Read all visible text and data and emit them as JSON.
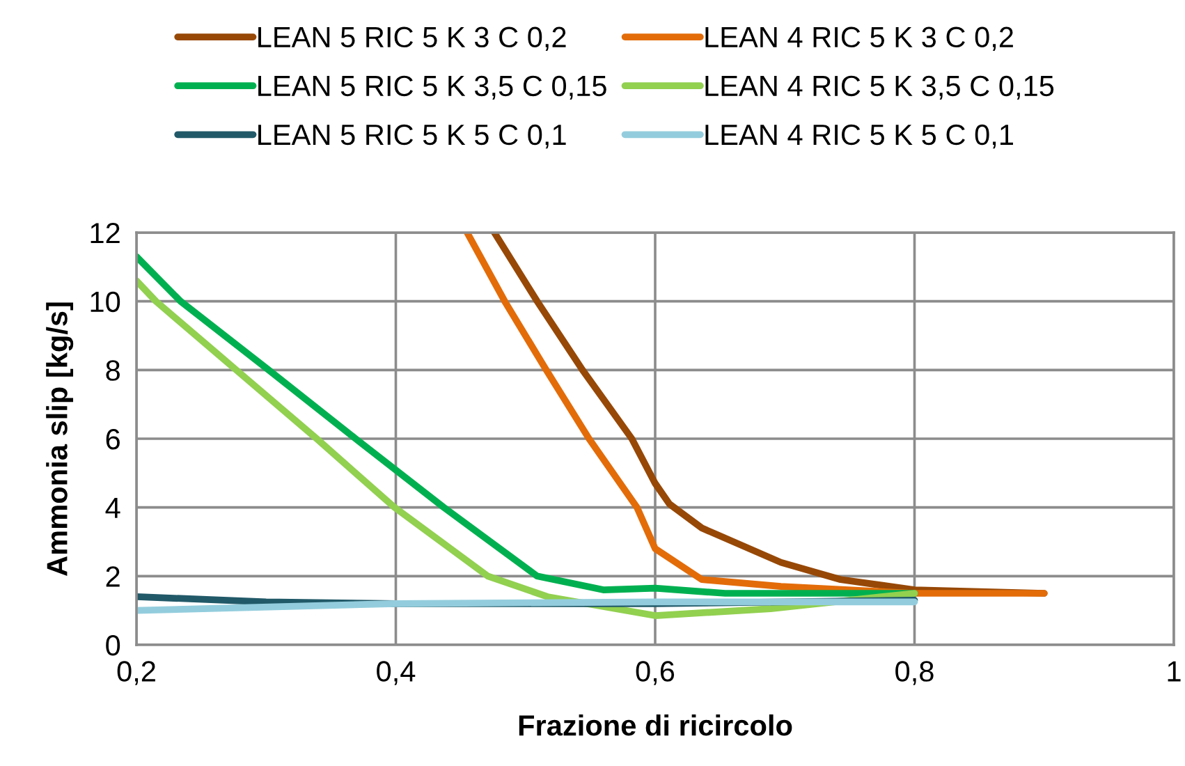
{
  "chart_data": {
    "type": "line",
    "xlabel": "Frazione di ricircolo",
    "ylabel": "Ammonia slip [kg/s]",
    "xlim": [
      0.2,
      1
    ],
    "ylim": [
      0,
      12
    ],
    "xticks": [
      {
        "value": 0.2,
        "label": "0,2"
      },
      {
        "value": 0.4,
        "label": "0,4"
      },
      {
        "value": 0.6,
        "label": "0,6"
      },
      {
        "value": 0.8,
        "label": "0,8"
      },
      {
        "value": 1,
        "label": "1"
      }
    ],
    "yticks": [
      0,
      2,
      4,
      6,
      8,
      10,
      12
    ],
    "grid": true,
    "legend": "top",
    "marker": "none",
    "line_style": "solid",
    "series": [
      {
        "name": "LEAN 5 RIC 5 K 3 C 0,2",
        "color": "#974806",
        "x": [
          0.476,
          0.509,
          0.544,
          0.582,
          0.6,
          0.611,
          0.636,
          0.697,
          0.743,
          0.8,
          0.9
        ],
        "values": [
          12,
          10,
          8,
          6,
          4.7,
          4.1,
          3.4,
          2.4,
          1.9,
          1.6,
          1.5
        ]
      },
      {
        "name": "LEAN 4 RIC 5 K 3 C 0,2",
        "color": "#e36c09",
        "x": [
          0.455,
          0.484,
          0.516,
          0.549,
          0.586,
          0.6,
          0.636,
          0.697,
          0.8,
          0.9
        ],
        "values": [
          12,
          10,
          8,
          6,
          4,
          2.8,
          1.9,
          1.7,
          1.5,
          1.5
        ]
      },
      {
        "name": "LEAN 5 RIC 5 K 3,5 C 0,15",
        "color": "#00b050",
        "x": [
          0.2,
          0.234,
          0.302,
          0.369,
          0.437,
          0.509,
          0.56,
          0.6,
          0.654,
          0.8
        ],
        "values": [
          11.3,
          10,
          8,
          6,
          4,
          2,
          1.6,
          1.65,
          1.5,
          1.5
        ]
      },
      {
        "name": "LEAN 4 RIC 5 K 3,5 C 0,15",
        "color": "#92d050",
        "x": [
          0.2,
          0.215,
          0.277,
          0.339,
          0.399,
          0.471,
          0.517,
          0.6,
          0.689,
          0.8
        ],
        "values": [
          10.6,
          10,
          8,
          6,
          4,
          2,
          1.4,
          0.85,
          1.05,
          1.5
        ]
      },
      {
        "name": "LEAN 5 RIC 5 K 5 C 0,1",
        "color": "#215968",
        "x": [
          0.2,
          0.3,
          0.4,
          0.6,
          0.8
        ],
        "values": [
          1.4,
          1.25,
          1.2,
          1.2,
          1.3
        ]
      },
      {
        "name": "LEAN 4 RIC 5 K 5 C 0,1",
        "color": "#93cddd",
        "x": [
          0.2,
          0.4,
          0.6,
          0.8
        ],
        "values": [
          1.0,
          1.2,
          1.25,
          1.25
        ]
      }
    ]
  }
}
